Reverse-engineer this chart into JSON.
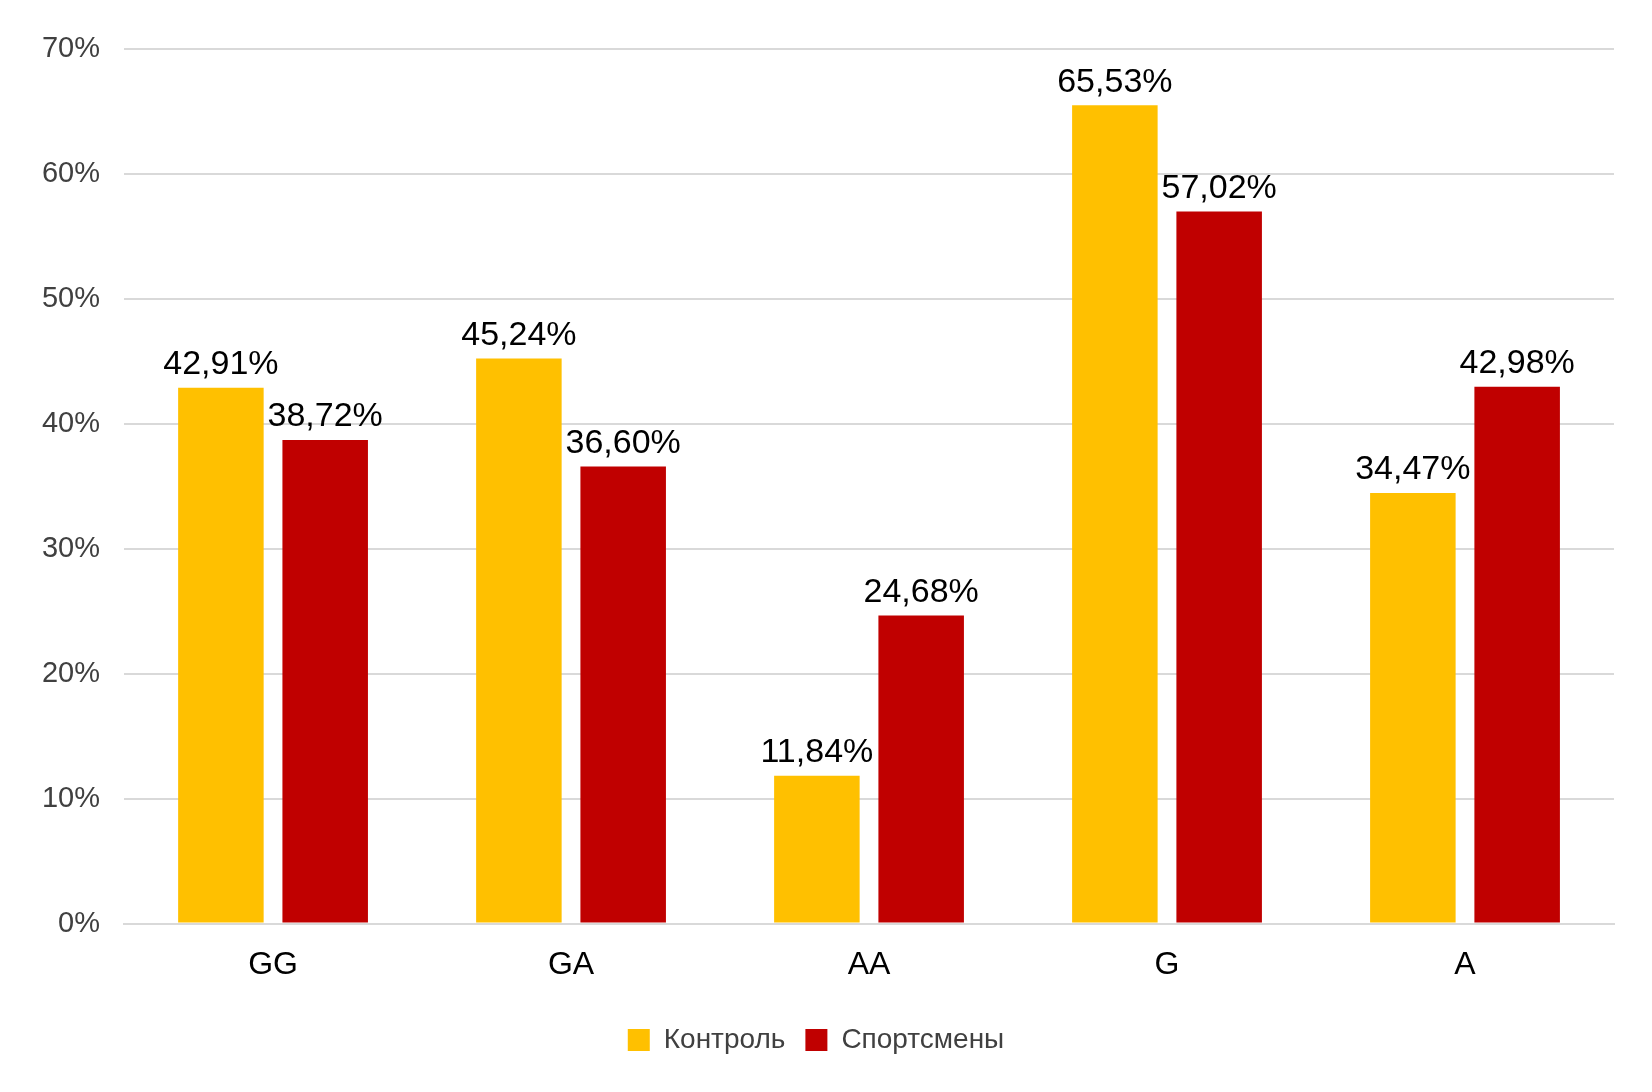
{
  "chart_data": {
    "type": "bar",
    "categories": [
      "GG",
      "GA",
      "AA",
      "G",
      "A"
    ],
    "series": [
      {
        "name": "Контроль",
        "color": "#ffc000",
        "values": [
          42.91,
          45.24,
          11.84,
          65.53,
          34.47
        ],
        "value_labels": [
          "42,91%",
          "45,24%",
          "11,84%",
          "65,53%",
          "34,47%"
        ]
      },
      {
        "name": "Спортсмены",
        "color": "#c00000",
        "values": [
          38.72,
          36.6,
          24.68,
          57.02,
          42.98
        ],
        "value_labels": [
          "38,72%",
          "36,60%",
          "24,68%",
          "57,02%",
          "42,98%"
        ]
      }
    ],
    "ylim": [
      0,
      70
    ],
    "yticks": [
      {
        "value": 0,
        "label": "0%"
      },
      {
        "value": 10,
        "label": "10%"
      },
      {
        "value": 20,
        "label": "20%"
      },
      {
        "value": 30,
        "label": "30%"
      },
      {
        "value": 40,
        "label": "40%"
      },
      {
        "value": 50,
        "label": "50%"
      },
      {
        "value": 60,
        "label": "60%"
      },
      {
        "value": 70,
        "label": "70%"
      }
    ],
    "grid": "y",
    "legend": "bottom"
  }
}
